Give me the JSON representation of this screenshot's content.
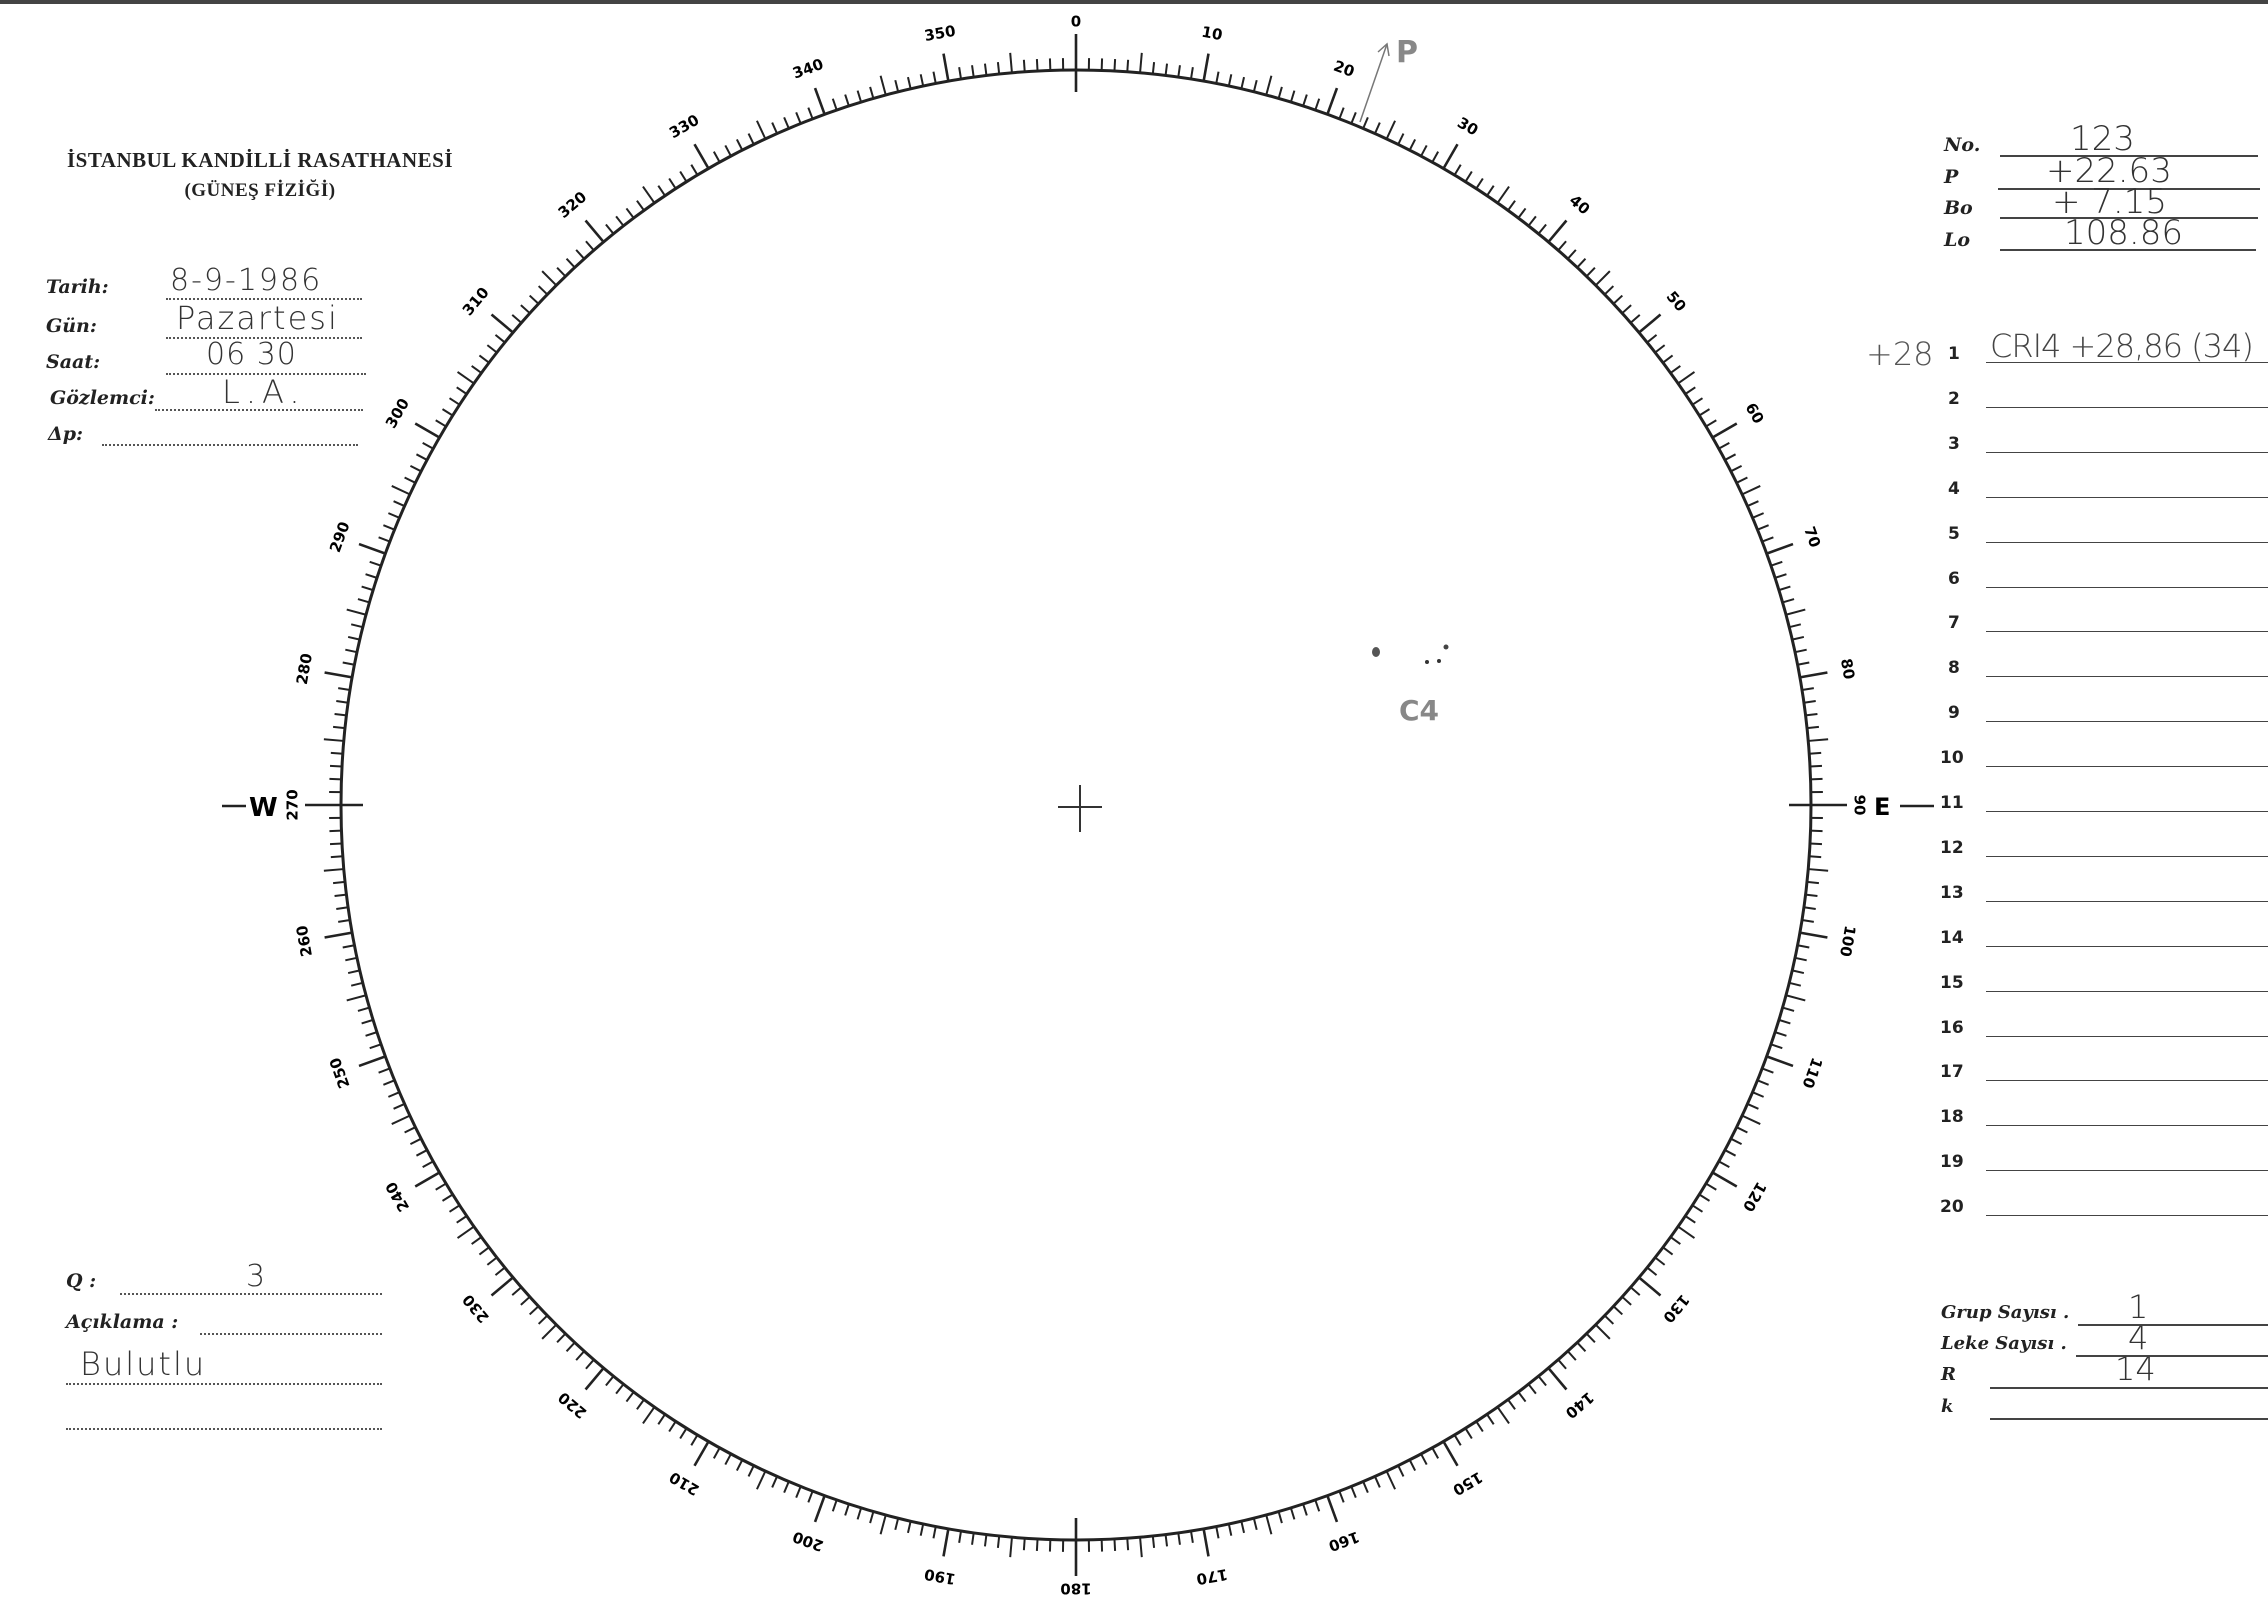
{
  "header": {
    "institution": "İSTANBUL KANDİLLİ RASATHANESİ",
    "department": "(GÜNEŞ FİZİĞİ)"
  },
  "left_fields": [
    {
      "label": "Tarih:",
      "value": "8-9-1986"
    },
    {
      "label": "Gün:",
      "value": "Pazartesi"
    },
    {
      "label": "Saat:",
      "value": "06 30"
    },
    {
      "label": "Gözlemci:",
      "value": "L.A."
    },
    {
      "label": "Δp:",
      "value": ""
    }
  ],
  "bottom_left": {
    "q_label": "Q :",
    "q_value": "3",
    "remark_label": "Açıklama :",
    "remark_value": "Bulutlu"
  },
  "params": [
    {
      "label": "No.",
      "value": "123"
    },
    {
      "label": "P",
      "value": "+22.63"
    },
    {
      "label": "Bo",
      "value": "+ 7.15"
    },
    {
      "label": "Lo",
      "value": "108.86"
    }
  ],
  "groups": {
    "numbers": [
      "1",
      "2",
      "3",
      "4",
      "5",
      "6",
      "7",
      "8",
      "9",
      "10",
      "11",
      "12",
      "13",
      "14",
      "15",
      "16",
      "17",
      "18",
      "19",
      "20"
    ],
    "row1_margin": "+28",
    "row1_value": "CRI4 +28,86 (34)"
  },
  "totals": [
    {
      "label": "Grup Sayısı .",
      "value": "1"
    },
    {
      "label": "Leke Sayısı .",
      "value": "4"
    },
    {
      "label": "R",
      "value": "14"
    },
    {
      "label": "k",
      "value": ""
    }
  ],
  "dial": {
    "labels": [
      "0",
      "10",
      "20",
      "30",
      "40",
      "50",
      "60",
      "70",
      "80",
      "90",
      "100",
      "110",
      "120",
      "130",
      "140",
      "150",
      "160",
      "170",
      "180",
      "190",
      "200",
      "210",
      "220",
      "230",
      "240",
      "250",
      "260",
      "270",
      "280",
      "290",
      "300",
      "310",
      "320",
      "330",
      "340",
      "350"
    ],
    "west": "W",
    "east": "E",
    "pole_marker": "P",
    "group_label": "C4"
  },
  "colors": {
    "ink": "#222222",
    "pencil": "#777777"
  }
}
